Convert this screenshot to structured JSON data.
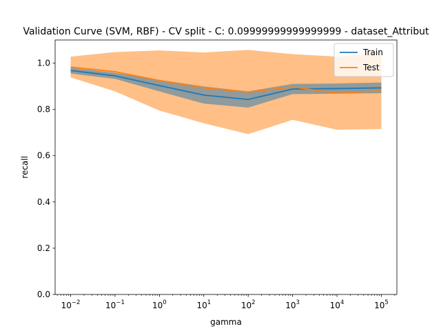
{
  "chart_data": {
    "type": "line",
    "title": "Validation Curve (SVM, RBF) - CV split - C: 0.09999999999999999 - dataset_Attribut",
    "xlabel": "gamma",
    "ylabel": "recall",
    "x_scale": "log",
    "x": [
      0.01,
      0.1,
      1,
      10,
      100,
      1000,
      10000,
      100000
    ],
    "x_tick_labels": [
      "10−2",
      "10−1",
      "10⁰",
      "10¹",
      "10²",
      "10³",
      "10⁴",
      "10⁵"
    ],
    "x_tick_base": [
      "10",
      "10",
      "10",
      "10",
      "10",
      "10",
      "10",
      "10"
    ],
    "x_tick_exp": [
      "−2",
      "−1",
      "0",
      "1",
      "2",
      "3",
      "4",
      "5"
    ],
    "ylim": [
      0.0,
      1.1
    ],
    "y_ticks": [
      0.0,
      0.2,
      0.4,
      0.6,
      0.8,
      1.0
    ],
    "y_tick_labels": [
      "0.0",
      "0.2",
      "0.4",
      "0.6",
      "0.8",
      "1.0"
    ],
    "grid": false,
    "legend_position": "top-right",
    "series": [
      {
        "name": "Train",
        "color": "#1f77b4",
        "values": [
          0.968,
          0.945,
          0.903,
          0.862,
          0.843,
          0.888,
          0.89,
          0.893
        ],
        "band_lower": [
          0.955,
          0.932,
          0.878,
          0.825,
          0.808,
          0.866,
          0.868,
          0.87
        ],
        "band_upper": [
          0.98,
          0.958,
          0.928,
          0.899,
          0.878,
          0.91,
          0.912,
          0.916
        ]
      },
      {
        "name": "Test",
        "color": "#ff7f0e",
        "values": [
          0.983,
          0.963,
          0.925,
          0.893,
          0.875,
          0.897,
          0.87,
          0.881
        ],
        "band_lower": [
          0.938,
          0.878,
          0.795,
          0.74,
          0.693,
          0.755,
          0.712,
          0.715
        ],
        "band_upper": [
          1.028,
          1.048,
          1.055,
          1.046,
          1.057,
          1.039,
          1.028,
          1.047
        ]
      }
    ]
  }
}
